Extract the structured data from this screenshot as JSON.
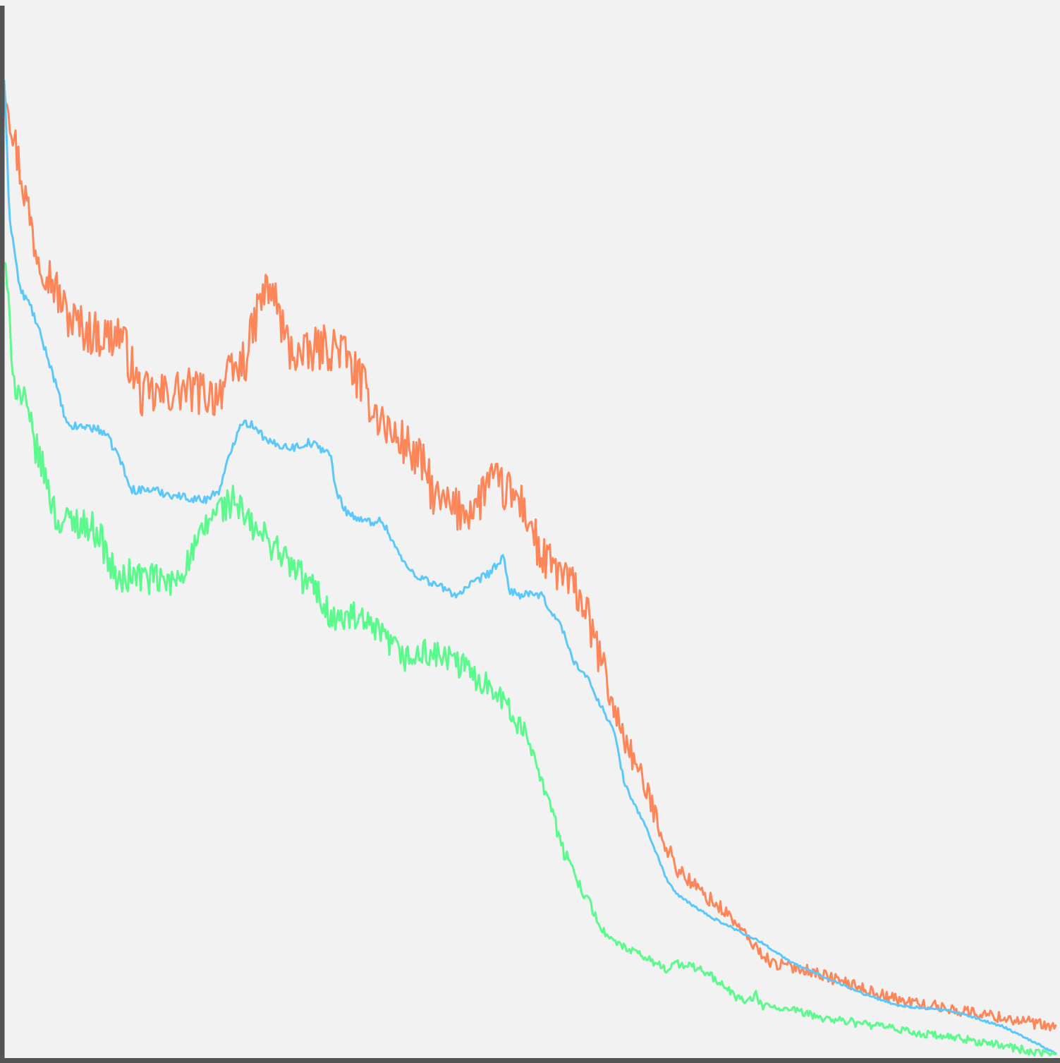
{
  "chart_data": {
    "type": "line",
    "title": "",
    "xlabel": "",
    "ylabel": "",
    "xlim": [
      0,
      1
    ],
    "ylim": [
      0,
      1
    ],
    "grid": false,
    "legend": "none",
    "axes": {
      "color": "#555555",
      "background": "#f2f2f2"
    },
    "series": [
      {
        "color": "#ff8659",
        "noise": 0.022,
        "x": [
          0,
          0.01,
          0.02,
          0.03,
          0.045,
          0.06,
          0.08,
          0.1,
          0.11,
          0.12,
          0.13,
          0.15,
          0.17,
          0.2,
          0.23,
          0.24,
          0.245,
          0.255,
          0.27,
          0.285,
          0.3,
          0.32,
          0.34,
          0.35,
          0.37,
          0.38,
          0.4,
          0.41,
          0.43,
          0.45,
          0.46,
          0.475,
          0.49,
          0.5,
          0.51,
          0.53,
          0.55,
          0.56,
          0.57,
          0.58,
          0.6,
          0.62,
          0.63,
          0.64,
          0.66,
          0.69,
          0.71,
          0.73,
          0.76,
          0.79,
          0.82,
          0.85,
          0.88,
          0.91,
          0.94,
          0.97,
          1.0
        ],
        "y": [
          0.935,
          0.87,
          0.82,
          0.77,
          0.74,
          0.705,
          0.69,
          0.685,
          0.69,
          0.66,
          0.63,
          0.63,
          0.635,
          0.63,
          0.665,
          0.705,
          0.725,
          0.73,
          0.675,
          0.665,
          0.675,
          0.675,
          0.64,
          0.62,
          0.59,
          0.585,
          0.56,
          0.53,
          0.52,
          0.525,
          0.55,
          0.54,
          0.53,
          0.51,
          0.475,
          0.46,
          0.435,
          0.4,
          0.37,
          0.33,
          0.28,
          0.23,
          0.2,
          0.18,
          0.16,
          0.135,
          0.11,
          0.09,
          0.085,
          0.075,
          0.065,
          0.055,
          0.05,
          0.045,
          0.04,
          0.035,
          0.028
        ]
      },
      {
        "color": "#5bc8fb",
        "noise": 0.004,
        "x": [
          0,
          0.005,
          0.015,
          0.025,
          0.035,
          0.045,
          0.06,
          0.08,
          0.095,
          0.11,
          0.12,
          0.14,
          0.16,
          0.19,
          0.205,
          0.215,
          0.225,
          0.24,
          0.25,
          0.275,
          0.29,
          0.31,
          0.315,
          0.325,
          0.34,
          0.36,
          0.38,
          0.39,
          0.4,
          0.43,
          0.46,
          0.475,
          0.48,
          0.49,
          0.51,
          0.53,
          0.54,
          0.555,
          0.58,
          0.59,
          0.61,
          0.63,
          0.64,
          0.67,
          0.72,
          0.75,
          0.82,
          0.85,
          0.9,
          0.95,
          0.98,
          1.0
        ],
        "y": [
          0.93,
          0.8,
          0.73,
          0.715,
          0.685,
          0.655,
          0.6,
          0.6,
          0.595,
          0.57,
          0.54,
          0.54,
          0.535,
          0.53,
          0.54,
          0.575,
          0.605,
          0.6,
          0.585,
          0.58,
          0.585,
          0.575,
          0.54,
          0.52,
          0.51,
          0.51,
          0.47,
          0.46,
          0.455,
          0.44,
          0.46,
          0.475,
          0.445,
          0.44,
          0.44,
          0.41,
          0.38,
          0.36,
          0.31,
          0.26,
          0.22,
          0.17,
          0.155,
          0.135,
          0.11,
          0.09,
          0.06,
          0.05,
          0.045,
          0.03,
          0.015,
          0.004
        ]
      },
      {
        "color": "#5bfa8c",
        "noise": 0.016,
        "x": [
          0,
          0.005,
          0.01,
          0.02,
          0.03,
          0.04,
          0.05,
          0.07,
          0.09,
          0.1,
          0.11,
          0.12,
          0.14,
          0.16,
          0.18,
          0.2,
          0.22,
          0.23,
          0.24,
          0.26,
          0.27,
          0.29,
          0.3,
          0.31,
          0.32,
          0.33,
          0.36,
          0.38,
          0.39,
          0.4,
          0.42,
          0.44,
          0.45,
          0.47,
          0.48,
          0.5,
          0.51,
          0.52,
          0.53,
          0.54,
          0.55,
          0.56,
          0.57,
          0.58,
          0.6,
          0.62,
          0.63,
          0.64,
          0.66,
          0.67,
          0.7,
          0.71,
          0.715,
          0.72,
          0.75,
          0.78,
          0.82,
          0.85,
          0.88,
          0.91,
          0.93,
          0.96,
          0.98,
          1.0
        ],
        "y": [
          0.76,
          0.7,
          0.64,
          0.62,
          0.58,
          0.55,
          0.51,
          0.51,
          0.5,
          0.47,
          0.45,
          0.46,
          0.455,
          0.45,
          0.48,
          0.52,
          0.53,
          0.51,
          0.5,
          0.485,
          0.47,
          0.45,
          0.44,
          0.42,
          0.415,
          0.42,
          0.4,
          0.38,
          0.38,
          0.385,
          0.38,
          0.37,
          0.36,
          0.35,
          0.33,
          0.3,
          0.27,
          0.24,
          0.2,
          0.18,
          0.16,
          0.14,
          0.12,
          0.11,
          0.1,
          0.09,
          0.085,
          0.09,
          0.085,
          0.08,
          0.055,
          0.055,
          0.06,
          0.05,
          0.045,
          0.038,
          0.032,
          0.027,
          0.022,
          0.018,
          0.015,
          0.01,
          0.005,
          0.002
        ]
      }
    ]
  }
}
